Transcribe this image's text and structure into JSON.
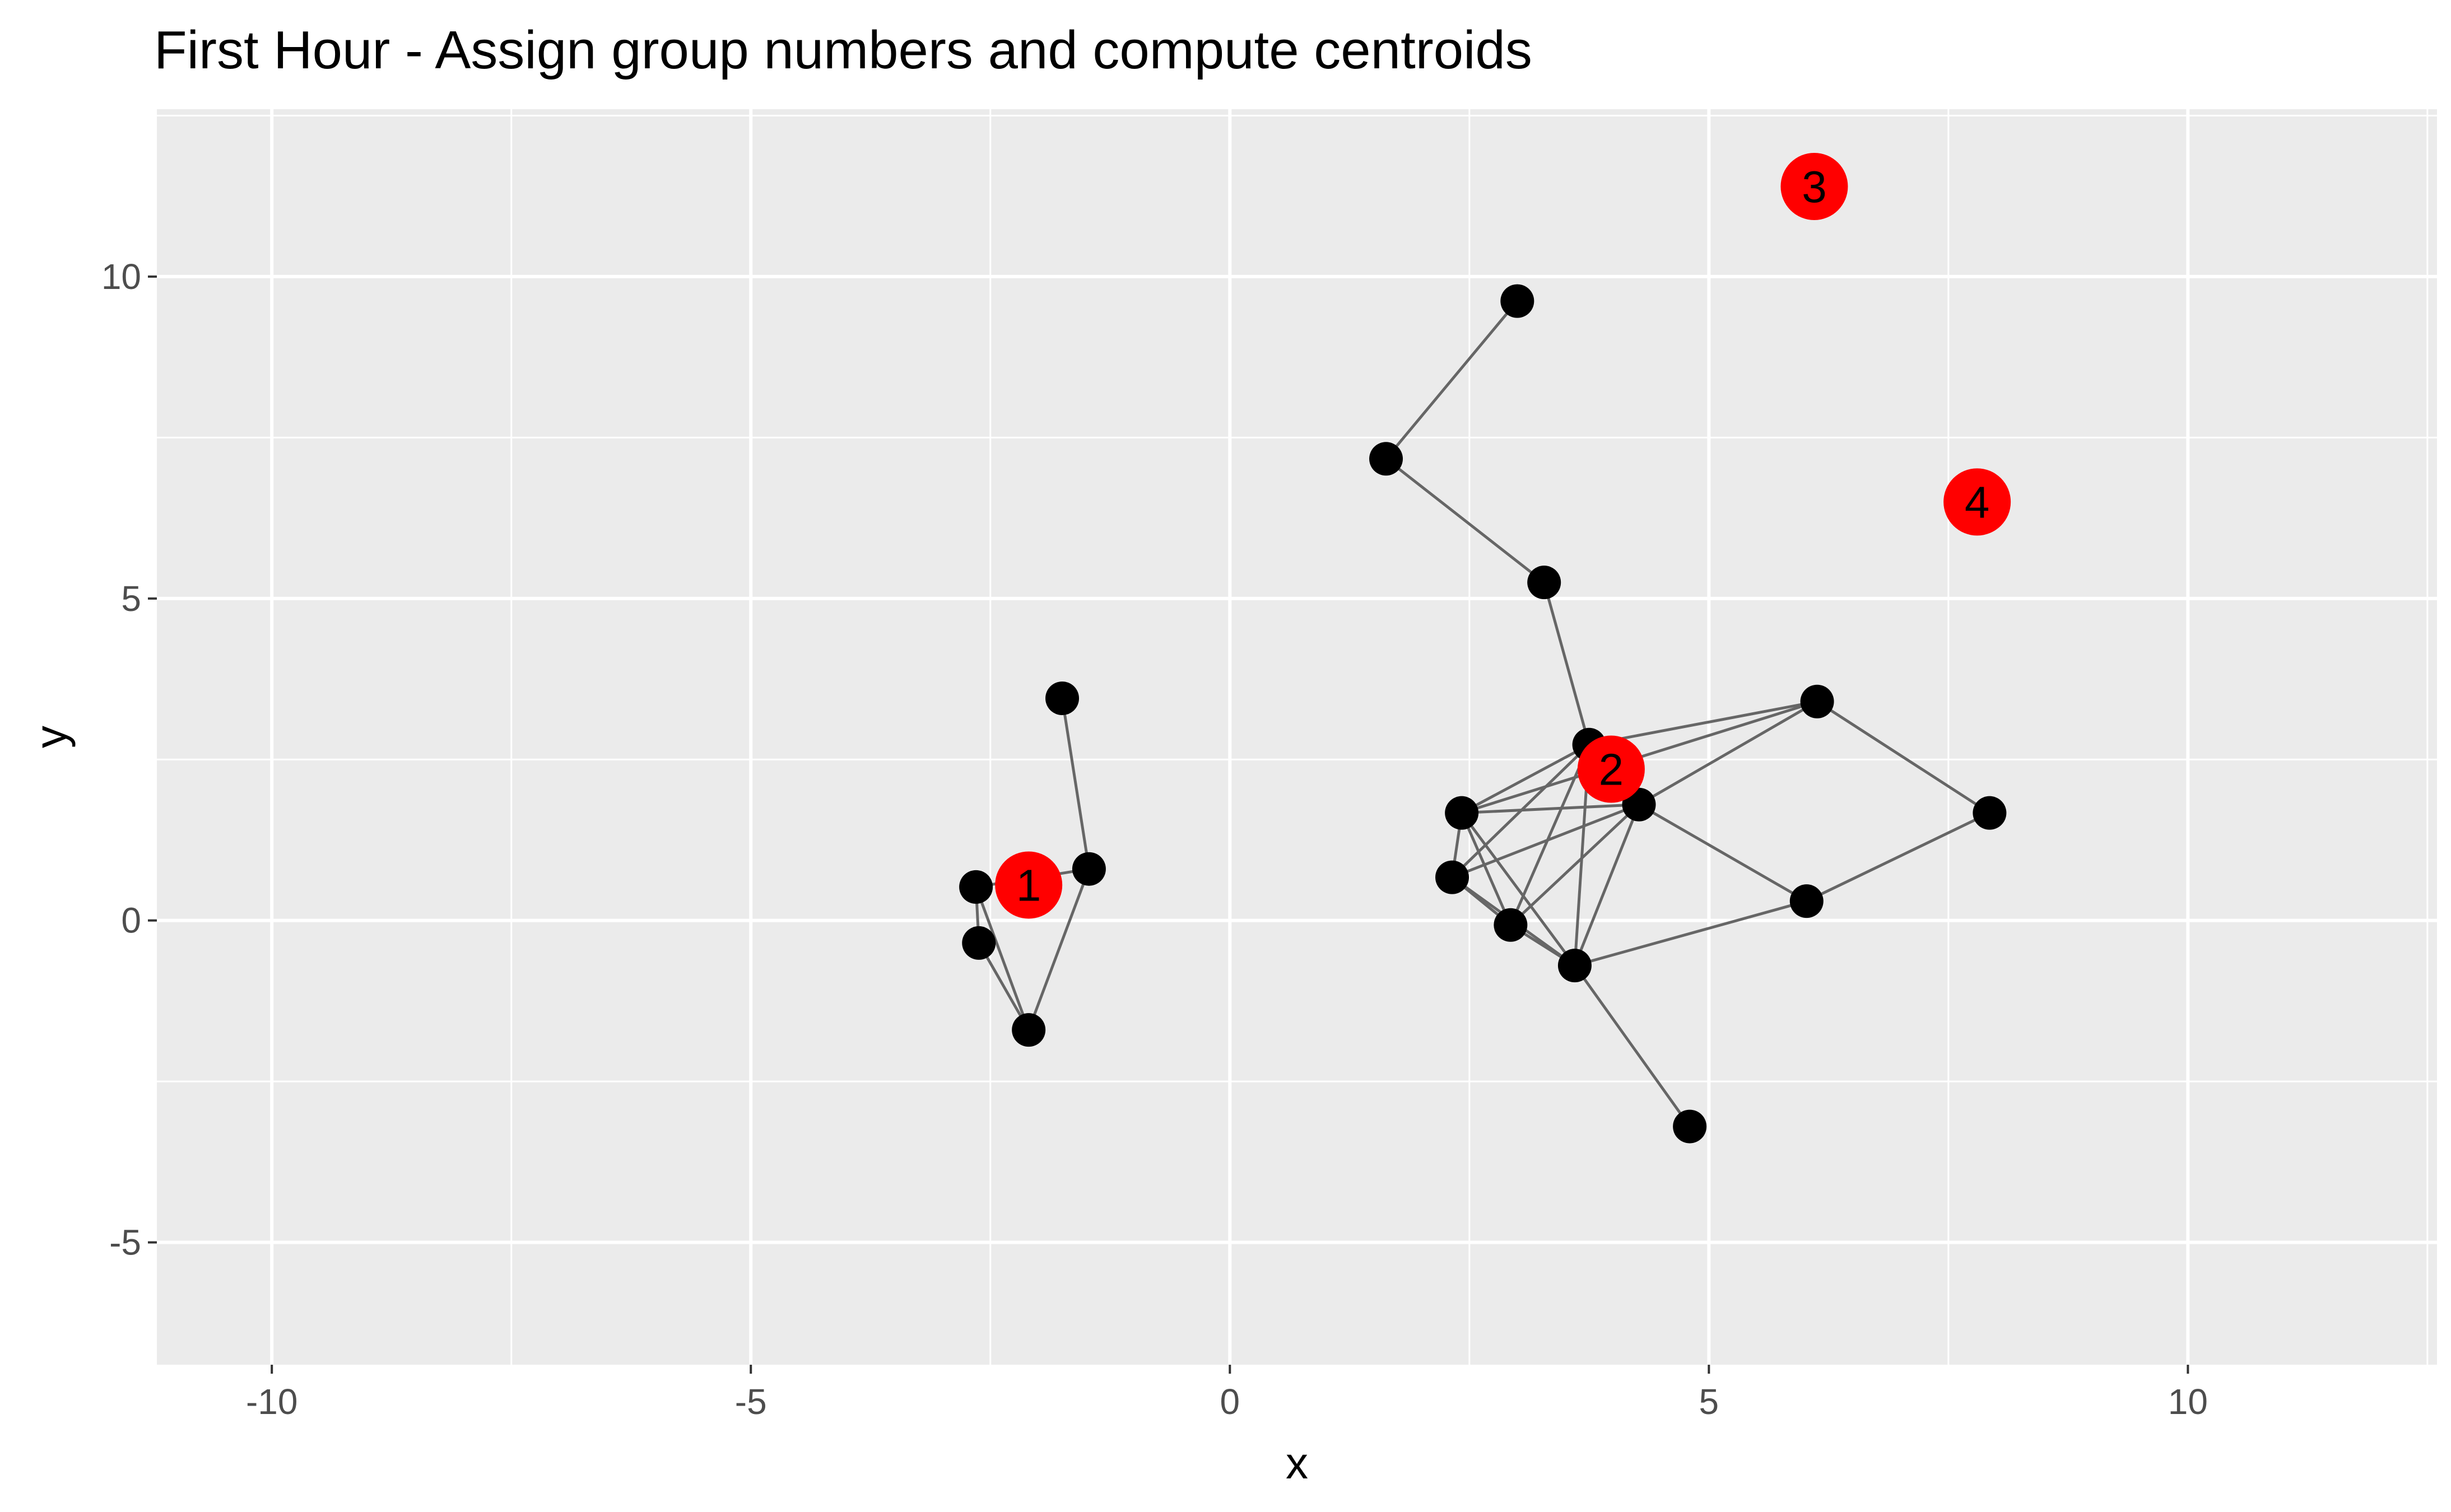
{
  "chart_data": {
    "type": "scatter",
    "title": "First Hour - Assign group numbers and compute centroids",
    "xlabel": "x",
    "ylabel": "y",
    "xlim": [
      -11.2,
      12.6
    ],
    "ylim": [
      -6.9,
      12.6
    ],
    "x_ticks": [
      -10,
      -5,
      0,
      5,
      10
    ],
    "x_tick_labels": [
      "-10",
      "-5",
      "0",
      "5",
      "10"
    ],
    "y_ticks": [
      -5,
      0,
      5,
      10
    ],
    "y_tick_labels": [
      "-5",
      "0",
      "5",
      "10"
    ],
    "grid": true,
    "colors": {
      "panel_background": "#ebebeb",
      "grid": "#ffffff",
      "points": "#000000",
      "centroids": "#ff0000",
      "lines": "#666666"
    },
    "points": [
      {
        "x": -1.75,
        "y": 3.45
      },
      {
        "x": -1.47,
        "y": 0.8
      },
      {
        "x": -2.65,
        "y": 0.52
      },
      {
        "x": -2.62,
        "y": -0.35
      },
      {
        "x": -2.1,
        "y": -1.7
      },
      {
        "x": 3.0,
        "y": 9.62
      },
      {
        "x": 1.63,
        "y": 7.17
      },
      {
        "x": 3.28,
        "y": 5.25
      },
      {
        "x": 3.75,
        "y": 2.73
      },
      {
        "x": 4.27,
        "y": 1.8
      },
      {
        "x": 2.42,
        "y": 1.67
      },
      {
        "x": 2.32,
        "y": 0.67
      },
      {
        "x": 2.93,
        "y": -0.07
      },
      {
        "x": 3.6,
        "y": -0.7
      },
      {
        "x": 4.8,
        "y": -3.2
      },
      {
        "x": 6.13,
        "y": 3.4
      },
      {
        "x": 7.93,
        "y": 1.67
      },
      {
        "x": 6.02,
        "y": 0.3
      }
    ],
    "edges": [
      [
        0,
        1
      ],
      [
        1,
        4
      ],
      [
        1,
        2
      ],
      [
        2,
        3
      ],
      [
        2,
        4
      ],
      [
        3,
        4
      ],
      [
        5,
        6
      ],
      [
        6,
        7
      ],
      [
        7,
        8
      ],
      [
        8,
        10
      ],
      [
        8,
        11
      ],
      [
        8,
        12
      ],
      [
        8,
        13
      ],
      [
        8,
        15
      ],
      [
        9,
        10
      ],
      [
        9,
        11
      ],
      [
        9,
        12
      ],
      [
        9,
        13
      ],
      [
        9,
        15
      ],
      [
        9,
        17
      ],
      [
        10,
        11
      ],
      [
        10,
        12
      ],
      [
        10,
        13
      ],
      [
        10,
        15
      ],
      [
        11,
        12
      ],
      [
        11,
        13
      ],
      [
        12,
        13
      ],
      [
        13,
        14
      ],
      [
        13,
        17
      ],
      [
        15,
        16
      ],
      [
        16,
        17
      ]
    ],
    "centroids": [
      {
        "label": "1",
        "x": -2.1,
        "y": 0.55
      },
      {
        "label": "2",
        "x": 3.98,
        "y": 2.35
      },
      {
        "label": "3",
        "x": 6.1,
        "y": 11.4
      },
      {
        "label": "4",
        "x": 7.8,
        "y": 6.5
      }
    ]
  }
}
